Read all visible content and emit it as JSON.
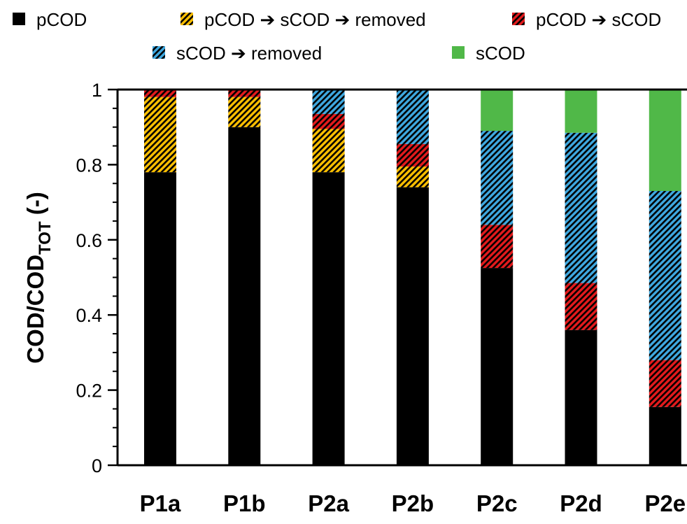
{
  "chart_data": {
    "type": "bar",
    "stacked": true,
    "categories": [
      "P1a",
      "P1b",
      "P2a",
      "P2b",
      "P2c",
      "P2d",
      "P2e"
    ],
    "series": [
      {
        "name": "pCOD",
        "color": "#000000",
        "pattern": "solid",
        "values": [
          0.78,
          0.9,
          0.78,
          0.74,
          0.525,
          0.36,
          0.155
        ]
      },
      {
        "name": "pCOD ➔ sCOD ➔ removed",
        "color": "#ffc000",
        "pattern": "hatch",
        "values": [
          0.2,
          0.08,
          0.115,
          0.055,
          0.0,
          0.0,
          0.0
        ]
      },
      {
        "name": "pCOD ➔ sCOD",
        "color": "#e31a1c",
        "pattern": "hatch",
        "values": [
          0.02,
          0.02,
          0.04,
          0.06,
          0.115,
          0.125,
          0.125
        ]
      },
      {
        "name": "sCOD ➔ removed",
        "color": "#3ea8e0",
        "pattern": "hatch",
        "values": [
          0.0,
          0.0,
          0.065,
          0.145,
          0.25,
          0.4,
          0.45
        ]
      },
      {
        "name": "sCOD",
        "color": "#50b848",
        "pattern": "solid",
        "values": [
          0.0,
          0.0,
          0.0,
          0.0,
          0.11,
          0.115,
          0.27
        ]
      }
    ],
    "xlabel": "",
    "ylabel": "COD/COD",
    "ylabel_subscript": "TOT",
    "ylabel_suffix": " (-)",
    "ylim": [
      0,
      1
    ],
    "yticks": [
      "0",
      "0.2",
      "0.4",
      "0.6",
      "0.8",
      "1"
    ],
    "ytick_values": [
      0,
      0.2,
      0.4,
      0.6,
      0.8,
      1
    ],
    "grid": false,
    "legend_position": "top"
  }
}
